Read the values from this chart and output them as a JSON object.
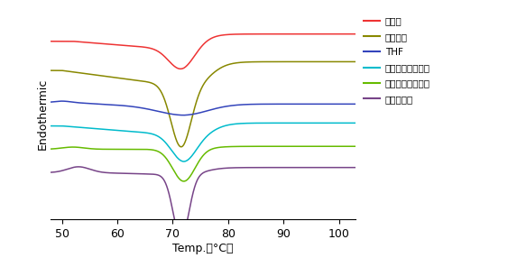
{
  "x_min": 48,
  "x_max": 103,
  "xlabel": "Temp.　（°C）",
  "ylabel": "Endothermic",
  "colors": {
    "red": "#ee3333",
    "olive": "#888800",
    "blue": "#3344bb",
    "cyan": "#00bbcc",
    "green": "#66bb00",
    "purple": "#774488"
  },
  "legend_labels": [
    "洗浄前",
    "ヘキサン",
    "THF",
    "ジエチルエーテル",
    "イソプロパノール",
    "酢酸エチル"
  ],
  "background_color": "#ffffff",
  "curve_bases": [
    0.92,
    0.72,
    0.5,
    0.34,
    0.18,
    0.02
  ],
  "dip_centers": [
    71.5,
    71.5,
    72.0,
    72.0,
    72.0,
    71.5
  ],
  "dip_widths": [
    2.2,
    1.8,
    4.5,
    2.2,
    2.0,
    1.4
  ],
  "dip_depths": [
    0.14,
    0.42,
    0.05,
    0.18,
    0.22,
    0.44
  ],
  "post_levels": [
    0.97,
    0.78,
    0.47,
    0.36,
    0.2,
    0.07
  ],
  "post_centers": [
    75.0,
    77.0,
    76.0,
    77.5,
    77.0,
    76.0
  ],
  "post_widths": [
    1.5,
    1.5,
    2.0,
    1.5,
    1.5,
    1.5
  ]
}
